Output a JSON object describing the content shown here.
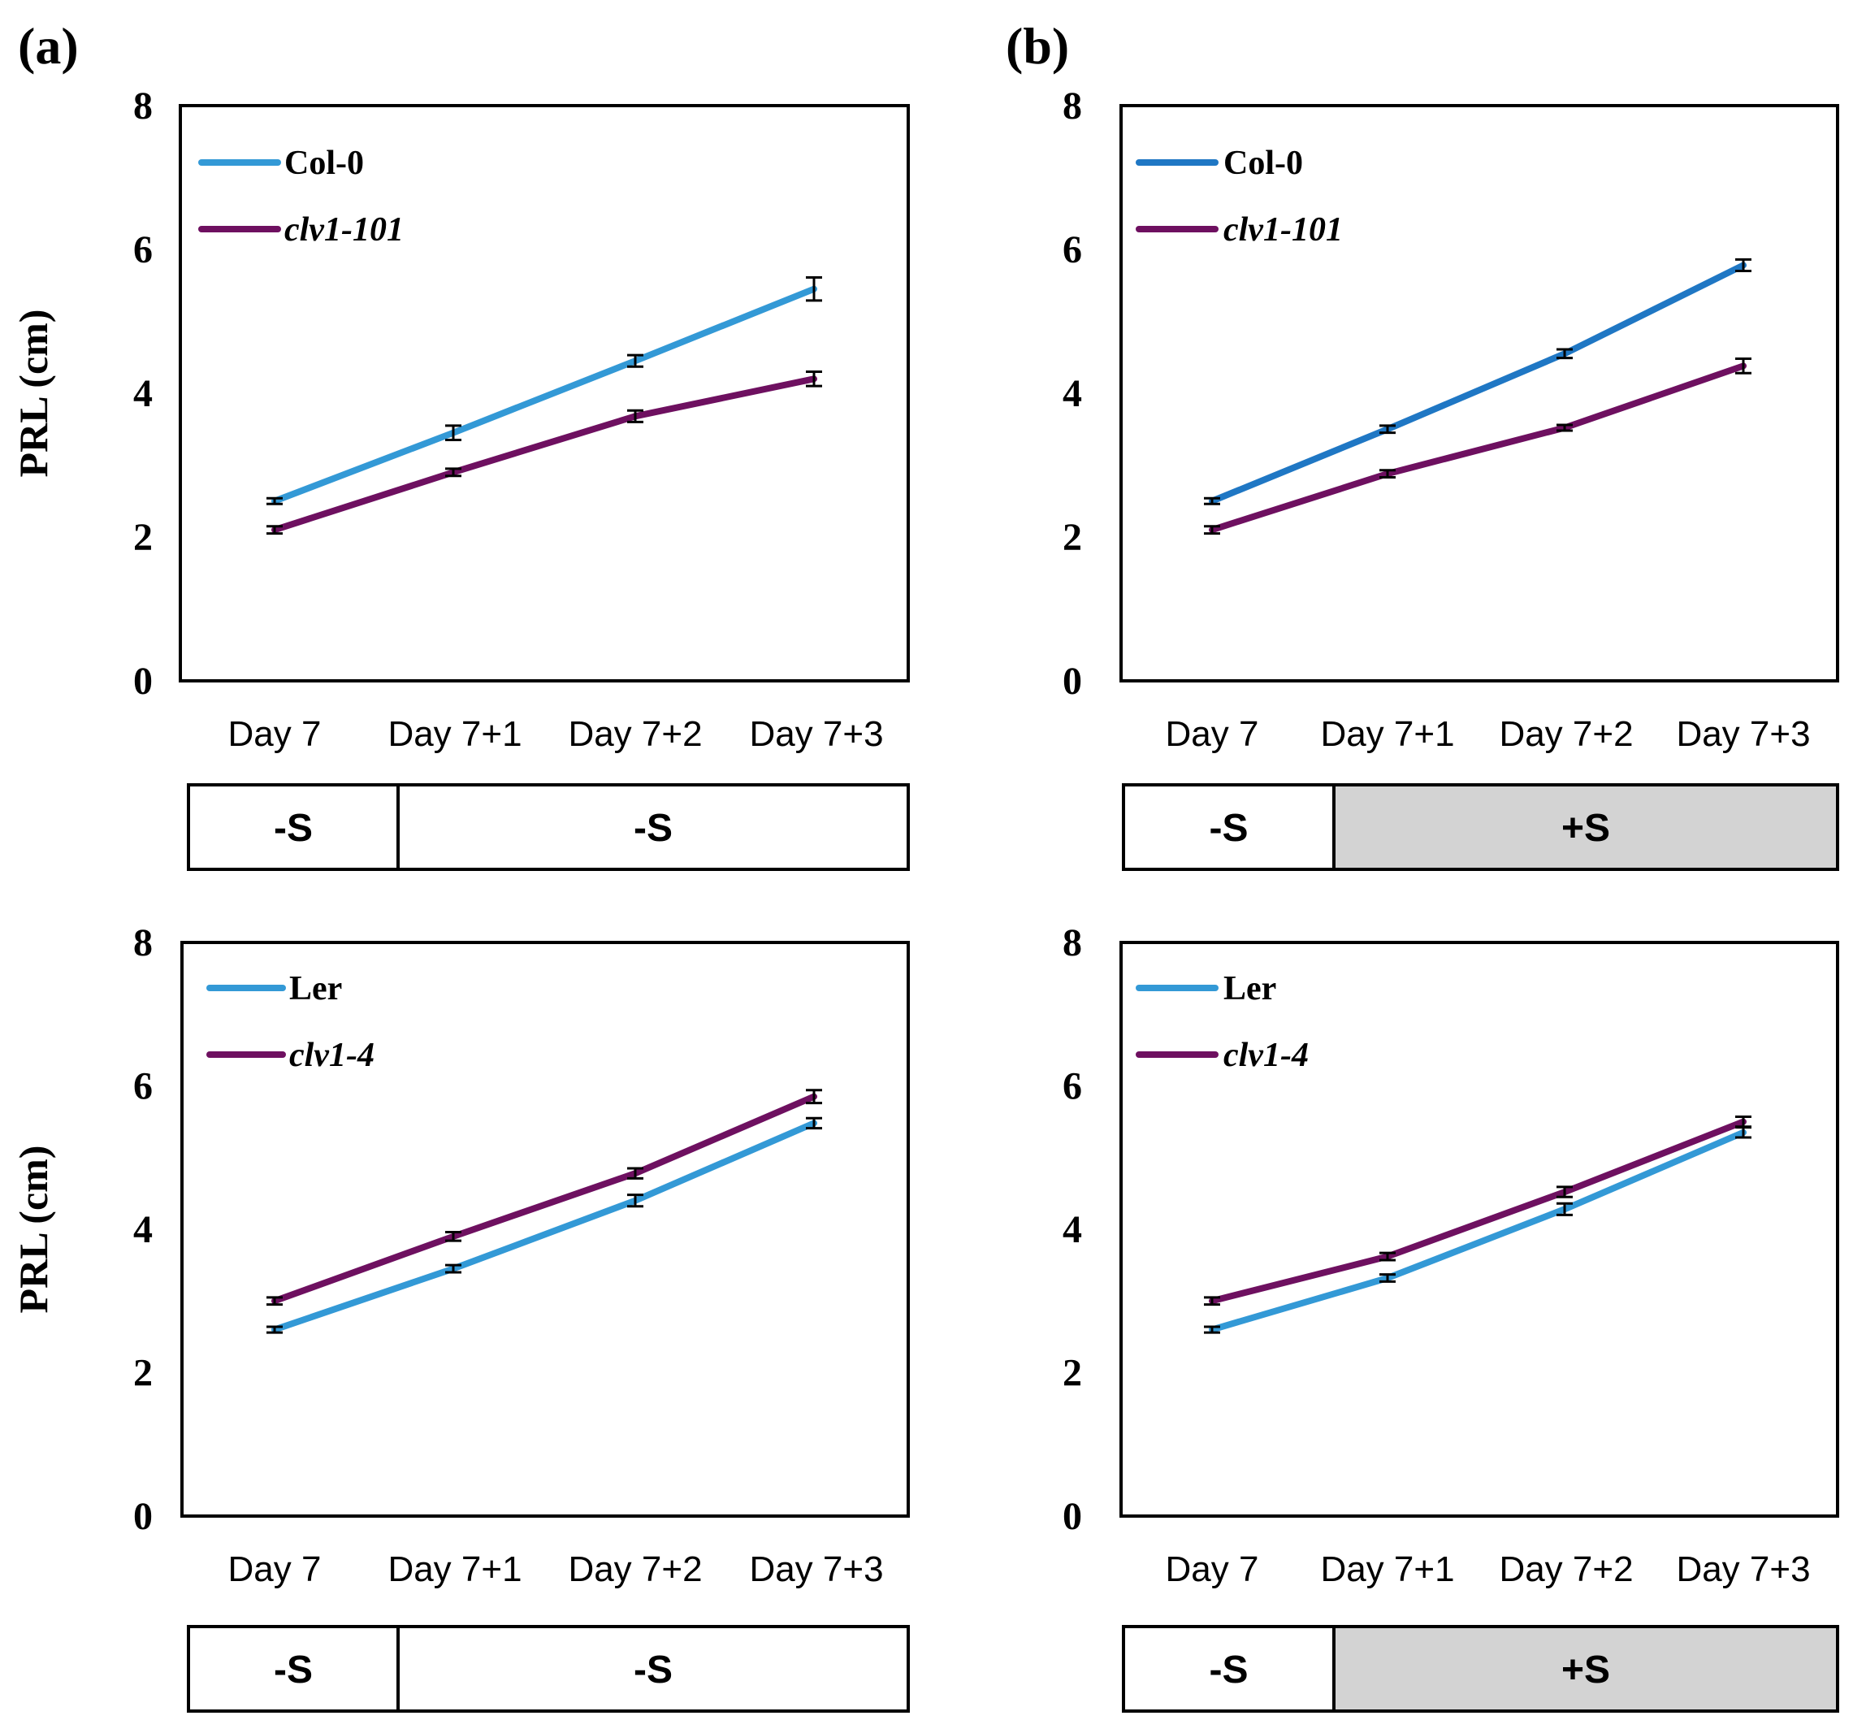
{
  "figure": {
    "panel_labels": [
      "(a)",
      "(b)"
    ]
  },
  "colors": {
    "light_blue": "#3399d6",
    "dark_blue": "#1f77c4",
    "purple": "#6e1060",
    "axis": "#000000",
    "gray_box": "#d3d3d3"
  },
  "chart_data": [
    {
      "id": "a-top",
      "type": "line",
      "panel_label": "(a)",
      "ylabel": "PRL (cm)",
      "xlabel": "",
      "ylim": [
        0,
        8
      ],
      "yticks": [
        "0",
        "2",
        "4",
        "6",
        "8"
      ],
      "categories": [
        "Day 7",
        "Day 7+1",
        "Day 7+2",
        "Day 7+3"
      ],
      "series": [
        {
          "name": "Col-0",
          "italic": false,
          "color": "#3399d6",
          "values": [
            2.5,
            3.45,
            4.45,
            5.45
          ],
          "errors": [
            0.04,
            0.1,
            0.08,
            0.16
          ]
        },
        {
          "name": "clv1-101",
          "italic": true,
          "color": "#6e1060",
          "values": [
            2.1,
            2.9,
            3.68,
            4.2
          ],
          "errors": [
            0.05,
            0.05,
            0.08,
            0.1
          ]
        }
      ],
      "treatment": [
        {
          "label": "-S",
          "shaded": false
        },
        {
          "label": "-S",
          "shaded": false
        }
      ]
    },
    {
      "id": "b-top",
      "type": "line",
      "panel_label": "(b)",
      "ylabel": "",
      "xlabel": "",
      "ylim": [
        0,
        8
      ],
      "yticks": [
        "0",
        "2",
        "4",
        "6",
        "8"
      ],
      "categories": [
        "Day 7",
        "Day 7+1",
        "Day 7+2",
        "Day 7+3"
      ],
      "series": [
        {
          "name": "Col-0",
          "italic": false,
          "color": "#1f77c4",
          "values": [
            2.5,
            3.5,
            4.55,
            5.78
          ],
          "errors": [
            0.04,
            0.05,
            0.06,
            0.08
          ]
        },
        {
          "name": "clv1-101",
          "italic": true,
          "color": "#6e1060",
          "values": [
            2.1,
            2.88,
            3.52,
            4.38
          ],
          "errors": [
            0.05,
            0.05,
            0.04,
            0.1
          ]
        }
      ],
      "treatment": [
        {
          "label": "-S",
          "shaded": false
        },
        {
          "label": "+S",
          "shaded": true
        }
      ]
    },
    {
      "id": "a-bottom",
      "type": "line",
      "panel_label": "",
      "ylabel": "PRL (cm)",
      "xlabel": "",
      "ylim": [
        0,
        8
      ],
      "yticks": [
        "0",
        "2",
        "4",
        "6",
        "8"
      ],
      "categories": [
        "Day 7",
        "Day 7+1",
        "Day 7+2",
        "Day 7+3"
      ],
      "series": [
        {
          "name": "Ler",
          "italic": false,
          "color": "#3399d6",
          "values": [
            2.6,
            3.45,
            4.4,
            5.48
          ],
          "errors": [
            0.04,
            0.05,
            0.08,
            0.07
          ]
        },
        {
          "name": "clv1-4",
          "italic": true,
          "color": "#6e1060",
          "values": [
            3.0,
            3.9,
            4.78,
            5.85
          ],
          "errors": [
            0.05,
            0.06,
            0.07,
            0.09
          ]
        }
      ],
      "treatment": [
        {
          "label": "-S",
          "shaded": false
        },
        {
          "label": "-S",
          "shaded": false
        }
      ]
    },
    {
      "id": "b-bottom",
      "type": "line",
      "panel_label": "",
      "ylabel": "",
      "xlabel": "",
      "ylim": [
        0,
        8
      ],
      "yticks": [
        "0",
        "2",
        "4",
        "6",
        "8"
      ],
      "categories": [
        "Day 7",
        "Day 7+1",
        "Day 7+2",
        "Day 7+3"
      ],
      "series": [
        {
          "name": "Ler",
          "italic": false,
          "color": "#3399d6",
          "values": [
            2.6,
            3.32,
            4.28,
            5.35
          ],
          "errors": [
            0.04,
            0.05,
            0.08,
            0.07
          ]
        },
        {
          "name": "clv1-4",
          "italic": true,
          "color": "#6e1060",
          "values": [
            3.0,
            3.62,
            4.52,
            5.5
          ],
          "errors": [
            0.05,
            0.05,
            0.07,
            0.07
          ]
        }
      ],
      "treatment": [
        {
          "label": "-S",
          "shaded": false
        },
        {
          "label": "+S",
          "shaded": true
        }
      ]
    }
  ]
}
